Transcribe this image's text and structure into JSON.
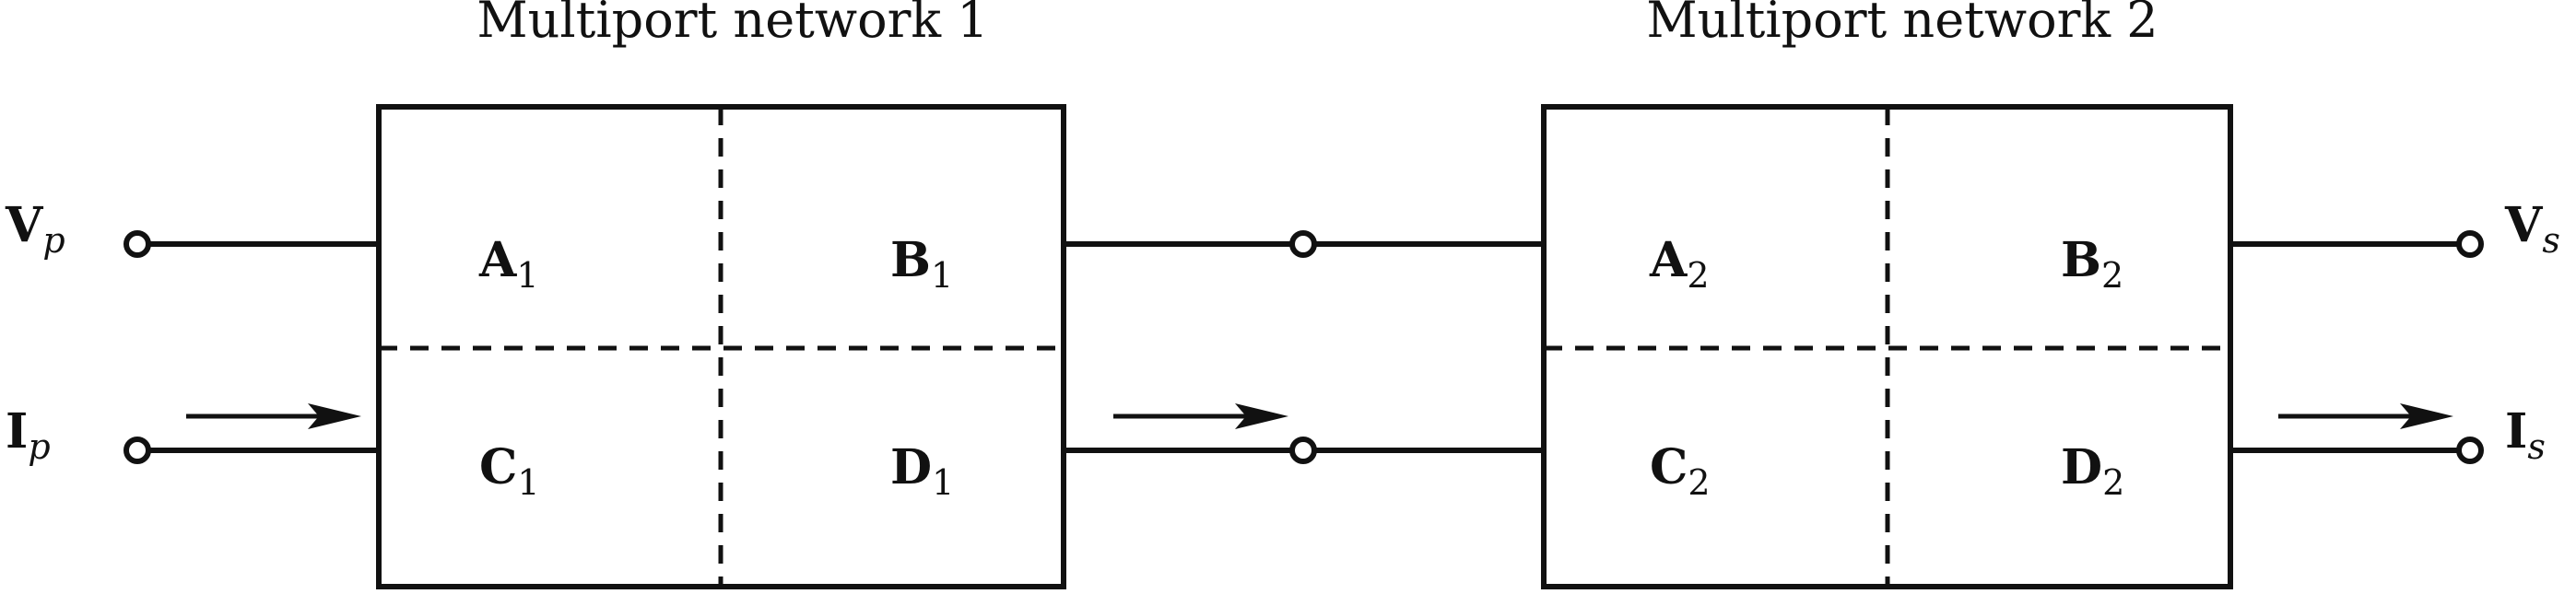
{
  "network1": {
    "title": "Multiport network 1",
    "cells": {
      "a": {
        "main": "A",
        "sub": "1"
      },
      "b": {
        "main": "B",
        "sub": "1"
      },
      "c": {
        "main": "C",
        "sub": "1"
      },
      "d": {
        "main": "D",
        "sub": "1"
      }
    }
  },
  "network2": {
    "title": "Multiport network 2",
    "cells": {
      "a": {
        "main": "A",
        "sub": "2"
      },
      "b": {
        "main": "B",
        "sub": "2"
      },
      "c": {
        "main": "C",
        "sub": "2"
      },
      "d": {
        "main": "D",
        "sub": "2"
      }
    }
  },
  "ports": {
    "vp": {
      "main": "V",
      "sub": "p"
    },
    "ip": {
      "main": "I",
      "sub": "p"
    },
    "vs": {
      "main": "V",
      "sub": "s"
    },
    "is": {
      "main": "I",
      "sub": "s"
    }
  }
}
